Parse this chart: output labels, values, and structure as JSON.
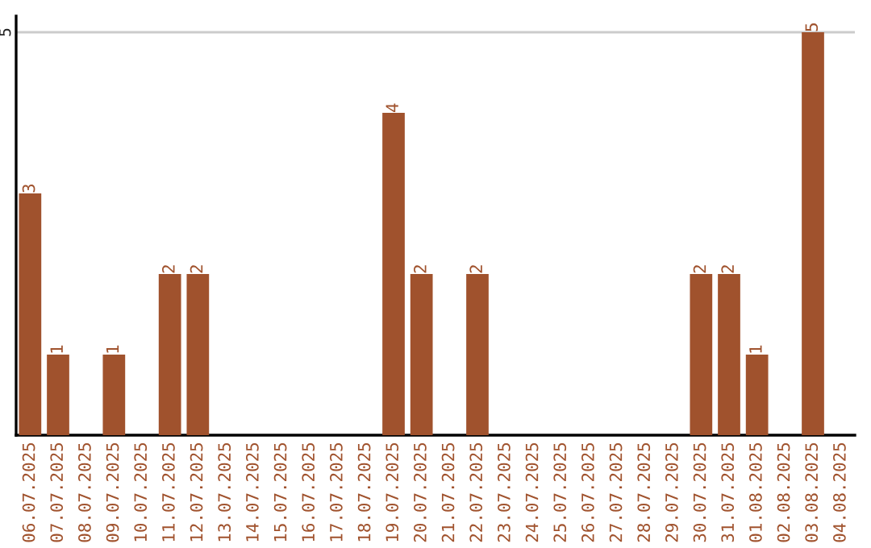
{
  "chart_data": {
    "type": "bar",
    "categories": [
      "06.07.2025",
      "07.07.2025",
      "08.07.2025",
      "09.07.2025",
      "10.07.2025",
      "11.07.2025",
      "12.07.2025",
      "13.07.2025",
      "14.07.2025",
      "15.07.2025",
      "16.07.2025",
      "17.07.2025",
      "18.07.2025",
      "19.07.2025",
      "20.07.2025",
      "21.07.2025",
      "22.07.2025",
      "23.07.2025",
      "24.07.2025",
      "25.07.2025",
      "26.07.2025",
      "27.07.2025",
      "28.07.2025",
      "29.07.2025",
      "30.07.2025",
      "31.07.2025",
      "01.08.2025",
      "02.08.2025",
      "03.08.2025",
      "04.08.2025"
    ],
    "values": [
      3,
      1,
      0,
      1,
      0,
      2,
      2,
      0,
      0,
      0,
      0,
      0,
      0,
      4,
      2,
      0,
      2,
      0,
      0,
      0,
      0,
      0,
      0,
      0,
      2,
      2,
      1,
      0,
      5,
      0
    ],
    "value_labels": [
      "3",
      "1",
      null,
      "1",
      null,
      "2",
      "2",
      null,
      null,
      null,
      null,
      null,
      null,
      "4",
      "2",
      null,
      "2",
      null,
      null,
      null,
      null,
      null,
      null,
      null,
      "2",
      "2",
      "1",
      null,
      "5",
      null
    ],
    "color": "#a0522d",
    "ylim": [
      0,
      5.2
    ],
    "yticks": [
      5
    ],
    "grid": "y"
  }
}
